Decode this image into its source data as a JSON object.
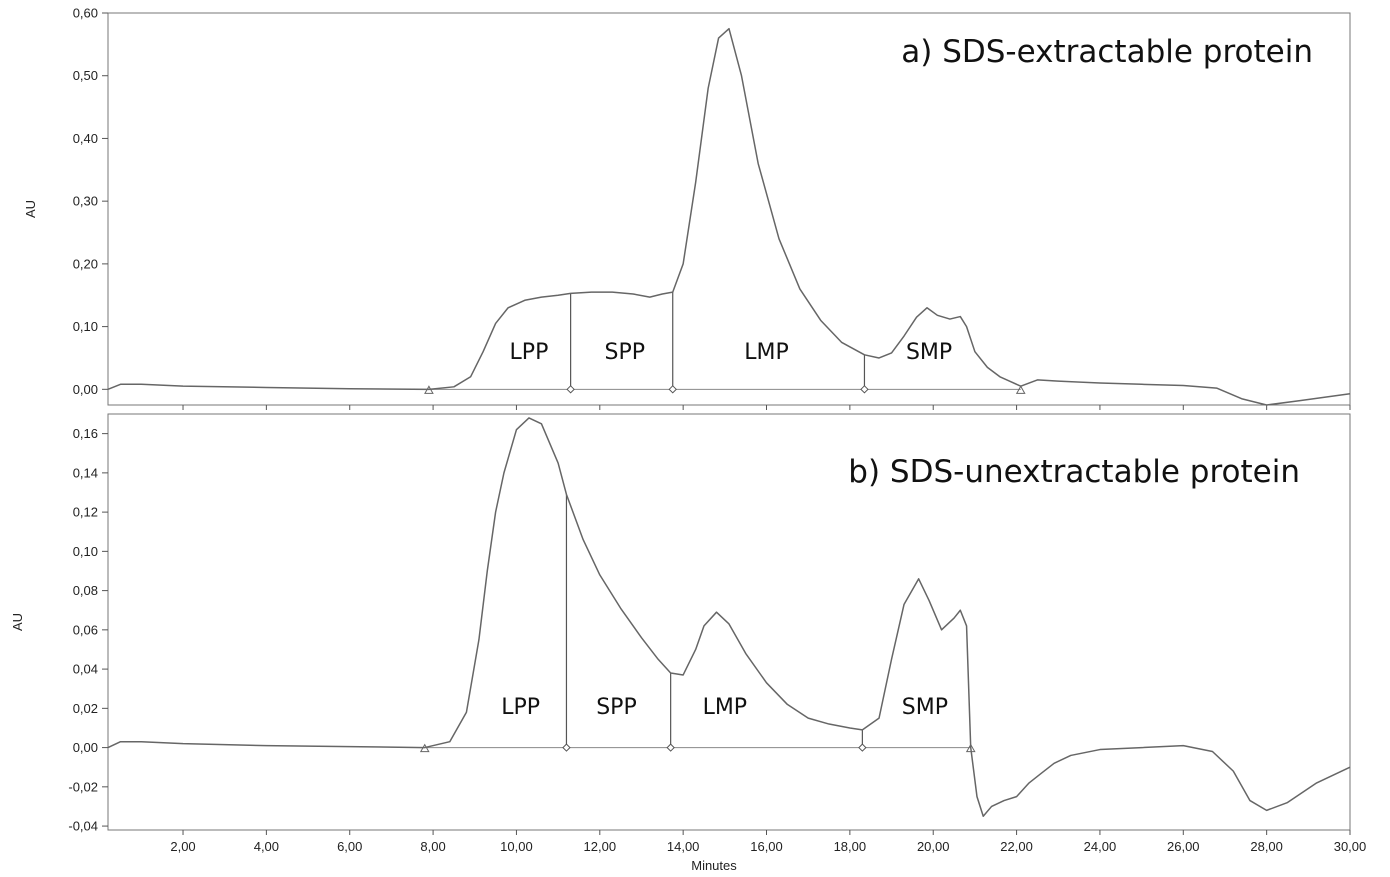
{
  "chart_data": [
    {
      "type": "line",
      "title": "a) SDS-extractable protein",
      "ylabel": "AU",
      "xlabel": "",
      "xlim": [
        0.2,
        30.0
      ],
      "ylim": [
        -0.025,
        0.6
      ],
      "x_ticks": [
        2,
        4,
        6,
        8,
        10,
        12,
        14,
        16,
        18,
        20,
        22,
        24,
        26,
        28,
        30
      ],
      "x_tick_labels": [],
      "y_ticks": [
        0.0,
        0.1,
        0.2,
        0.3,
        0.4,
        0.5,
        0.6
      ],
      "y_tick_labels": [
        "0,00",
        "0,10",
        "0,20",
        "0,30",
        "0,40",
        "0,50",
        "0,60"
      ],
      "baseline": {
        "x_start": 7.9,
        "x_end": 22.1,
        "y": 0.0
      },
      "dividers": [
        {
          "x": 11.3,
          "y_top": 0.153
        },
        {
          "x": 13.75,
          "y_top": 0.155
        },
        {
          "x": 18.35,
          "y_top": 0.055
        }
      ],
      "regions": [
        "LPP",
        "SPP",
        "LMP",
        "SMP"
      ],
      "region_label_x": [
        10.3,
        12.6,
        16.0,
        19.9
      ],
      "region_label_y": 0.048,
      "series": [
        {
          "x": [
            0.2,
            0.5,
            1.0,
            2.0,
            4.0,
            6.0,
            7.9,
            8.5,
            8.9,
            9.2,
            9.5,
            9.8,
            10.2,
            10.6,
            11.0,
            11.3,
            11.8,
            12.3,
            12.8,
            13.2,
            13.5,
            13.75,
            14.0,
            14.3,
            14.6,
            14.85,
            15.1,
            15.4,
            15.8,
            16.3,
            16.8,
            17.3,
            17.8,
            18.35,
            18.7,
            19.0,
            19.3,
            19.6,
            19.85,
            20.1,
            20.4,
            20.65,
            20.8,
            21.0,
            21.3,
            21.6,
            22.1,
            22.5,
            23.0,
            24.0,
            25.0,
            26.0,
            26.8,
            27.4,
            28.0,
            28.8,
            30.0
          ],
          "y": [
            0.0,
            0.008,
            0.008,
            0.005,
            0.003,
            0.001,
            0.0,
            0.004,
            0.02,
            0.06,
            0.105,
            0.13,
            0.142,
            0.147,
            0.15,
            0.153,
            0.155,
            0.155,
            0.152,
            0.147,
            0.152,
            0.155,
            0.2,
            0.33,
            0.48,
            0.56,
            0.575,
            0.5,
            0.36,
            0.24,
            0.16,
            0.11,
            0.075,
            0.055,
            0.05,
            0.058,
            0.085,
            0.115,
            0.13,
            0.118,
            0.112,
            0.116,
            0.1,
            0.06,
            0.035,
            0.02,
            0.005,
            0.015,
            0.013,
            0.01,
            0.008,
            0.006,
            0.002,
            -0.015,
            -0.025,
            -0.018,
            -0.007
          ]
        }
      ]
    },
    {
      "type": "line",
      "title": "b) SDS-unextractable protein",
      "ylabel": "AU",
      "xlabel": "Minutes",
      "xlim": [
        0.2,
        30.0
      ],
      "ylim": [
        -0.042,
        0.17
      ],
      "x_ticks": [
        2,
        4,
        6,
        8,
        10,
        12,
        14,
        16,
        18,
        20,
        22,
        24,
        26,
        28,
        30
      ],
      "x_tick_labels": [
        "2,00",
        "4,00",
        "6,00",
        "8,00",
        "10,00",
        "12,00",
        "14,00",
        "16,00",
        "18,00",
        "20,00",
        "22,00",
        "24,00",
        "26,00",
        "28,00",
        "30,00"
      ],
      "y_ticks": [
        -0.04,
        -0.02,
        0.0,
        0.02,
        0.04,
        0.06,
        0.08,
        0.1,
        0.12,
        0.14,
        0.16
      ],
      "y_tick_labels": [
        "-0,04",
        "-0,02",
        "0,00",
        "0,02",
        "0,04",
        "0,06",
        "0,08",
        "0,10",
        "0,12",
        "0,14",
        "0,16"
      ],
      "baseline": {
        "x_start": 7.8,
        "x_end": 20.9,
        "y": 0.0
      },
      "dividers": [
        {
          "x": 11.2,
          "y_top": 0.129
        },
        {
          "x": 13.7,
          "y_top": 0.038
        },
        {
          "x": 18.3,
          "y_top": 0.009
        }
      ],
      "regions": [
        "LPP",
        "SPP",
        "LMP",
        "SMP"
      ],
      "region_label_x": [
        10.1,
        12.4,
        15.0,
        19.8
      ],
      "region_label_y": 0.017,
      "series": [
        {
          "x": [
            0.2,
            0.5,
            1.0,
            2.0,
            4.0,
            6.0,
            7.8,
            8.4,
            8.8,
            9.1,
            9.3,
            9.5,
            9.7,
            10.0,
            10.3,
            10.6,
            11.0,
            11.2,
            11.6,
            12.0,
            12.5,
            13.0,
            13.4,
            13.7,
            14.0,
            14.3,
            14.5,
            14.8,
            15.1,
            15.5,
            16.0,
            16.5,
            17.0,
            17.5,
            18.0,
            18.3,
            18.7,
            19.0,
            19.3,
            19.65,
            19.9,
            20.2,
            20.5,
            20.65,
            20.8,
            20.9,
            21.05,
            21.2,
            21.4,
            21.7,
            22.0,
            22.3,
            22.6,
            22.9,
            23.3,
            24.0,
            25.0,
            26.0,
            26.7,
            27.2,
            27.6,
            28.0,
            28.5,
            29.2,
            30.0
          ],
          "y": [
            0.0,
            0.003,
            0.003,
            0.002,
            0.001,
            0.0005,
            0.0,
            0.003,
            0.018,
            0.055,
            0.09,
            0.12,
            0.14,
            0.162,
            0.168,
            0.165,
            0.145,
            0.129,
            0.106,
            0.088,
            0.071,
            0.056,
            0.045,
            0.038,
            0.037,
            0.05,
            0.062,
            0.069,
            0.063,
            0.048,
            0.033,
            0.022,
            0.015,
            0.012,
            0.01,
            0.009,
            0.015,
            0.045,
            0.073,
            0.086,
            0.075,
            0.06,
            0.066,
            0.07,
            0.062,
            0.0,
            -0.025,
            -0.035,
            -0.03,
            -0.027,
            -0.025,
            -0.018,
            -0.013,
            -0.008,
            -0.004,
            -0.001,
            0.0,
            0.001,
            -0.002,
            -0.012,
            -0.027,
            -0.032,
            -0.028,
            -0.018,
            -0.01
          ]
        }
      ]
    }
  ]
}
